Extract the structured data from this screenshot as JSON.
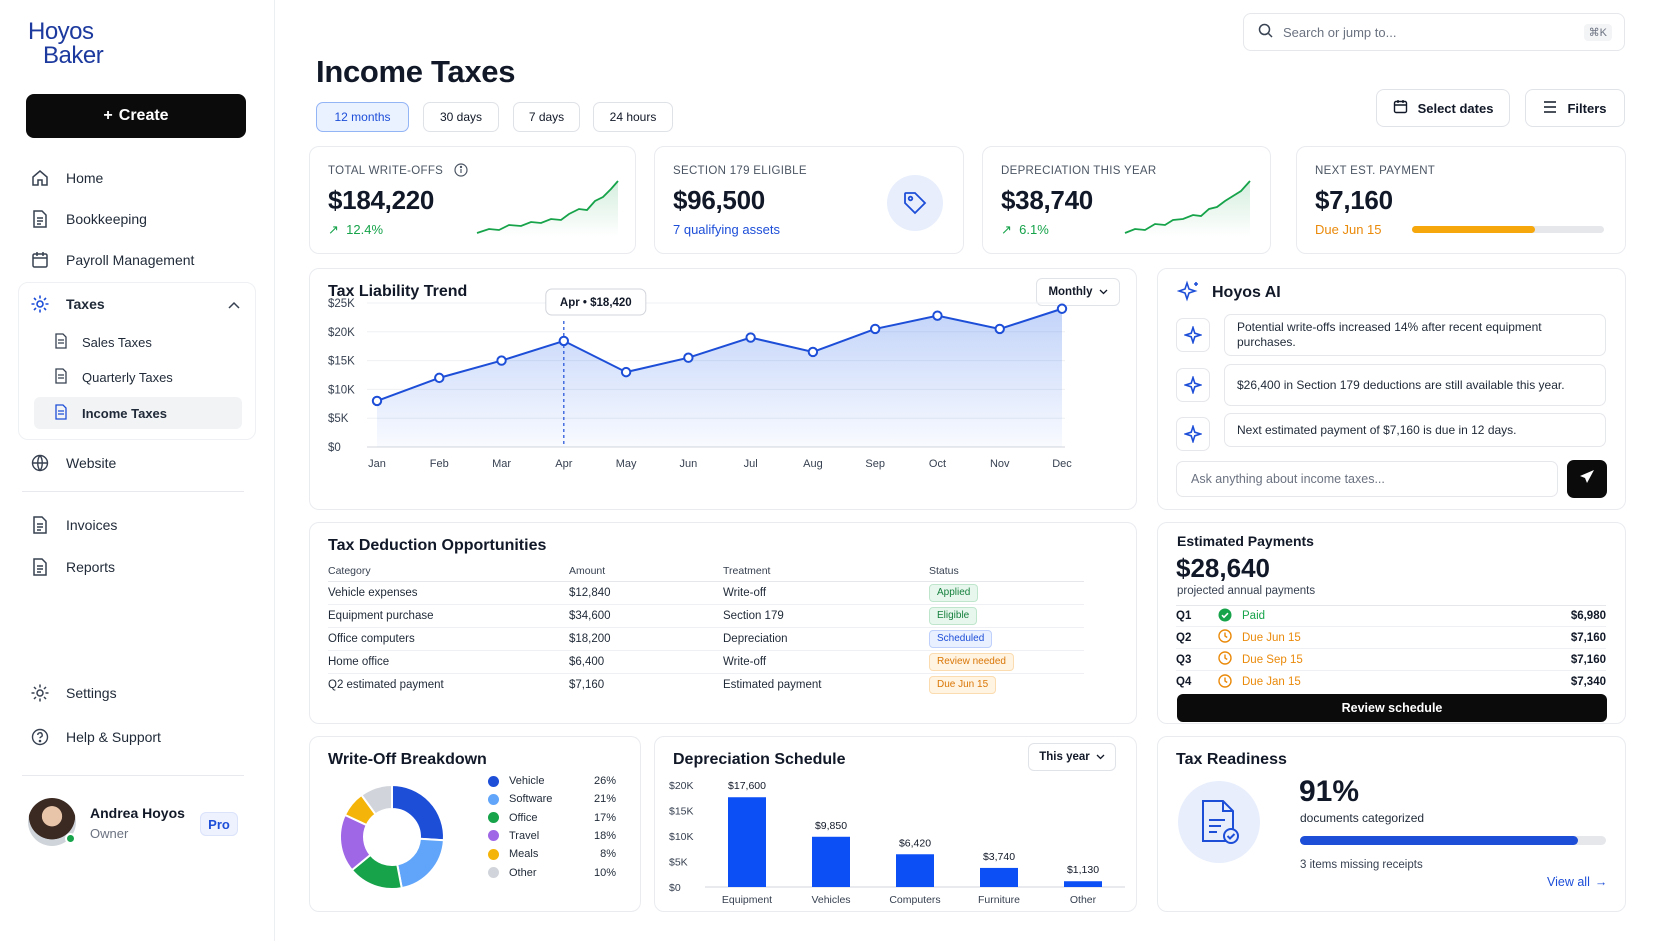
{
  "brand": {
    "line1": "Hoyos",
    "line2": "Baker",
    "color": "#1d3a9e"
  },
  "sidebar": {
    "create_label": "Create",
    "items": [
      {
        "label": "Home",
        "icon": "home-icon"
      },
      {
        "label": "Bookkeeping",
        "icon": "document-icon"
      },
      {
        "label": "Payroll Management",
        "icon": "calendar-icon"
      },
      {
        "label": "Taxes",
        "icon": "gear-icon"
      },
      {
        "label": "Website",
        "icon": "globe-icon"
      },
      {
        "label": "Invoices",
        "icon": "document-icon"
      },
      {
        "label": "Reports",
        "icon": "document-icon"
      },
      {
        "label": "Settings",
        "icon": "gear-icon"
      },
      {
        "label": "Help & Support",
        "icon": "help-icon"
      }
    ],
    "taxes_sub": [
      {
        "label": "Sales Taxes"
      },
      {
        "label": "Quarterly Taxes"
      },
      {
        "label": "Income Taxes",
        "active": true
      }
    ],
    "user": {
      "name": "Andrea Hoyos",
      "role": "Owner",
      "badge": "Pro",
      "status": "online"
    }
  },
  "header": {
    "search_placeholder": "Search or jump to...",
    "search_shortcut": "⌘K",
    "title": "Income Taxes",
    "ranges": [
      "12 months",
      "30 days",
      "7 days",
      "24 hours"
    ],
    "active_range": "12 months",
    "select_dates": "Select dates",
    "filters": "Filters"
  },
  "kpis": [
    {
      "label": "TOTAL WRITE-OFFS",
      "value": "$184,220",
      "sub": "12.4%",
      "trend": "up"
    },
    {
      "label": "SECTION 179 ELIGIBLE",
      "value": "$96,500",
      "sub": "7 qualifying assets"
    },
    {
      "label": "DEPRECIATION THIS YEAR",
      "value": "$38,740",
      "sub": "6.1%",
      "trend": "up"
    },
    {
      "label": "NEXT EST. PAYMENT",
      "value": "$7,160",
      "sub": "Due Jun 15",
      "progress": 0.64
    }
  ],
  "trend_chart": {
    "title": "Tax Liability Trend",
    "period_select": "Monthly",
    "tooltip": "Apr • $18,420"
  },
  "ai": {
    "title": "Hoyos AI",
    "messages": [
      "Potential write-offs increased 14% after recent equipment purchases.",
      "$26,400 in Section 179 deductions are still available this year.",
      "Next estimated payment of $7,160 is due in 12 days."
    ],
    "input_placeholder": "Ask anything about income taxes..."
  },
  "deductions": {
    "title": "Tax Deduction Opportunities",
    "columns": [
      "Category",
      "Amount",
      "Treatment",
      "Status"
    ],
    "rows": [
      {
        "category": "Vehicle expenses",
        "amount": "$12,840",
        "treatment": "Write-off",
        "status": "Applied",
        "tone": "green"
      },
      {
        "category": "Equipment purchase",
        "amount": "$34,600",
        "treatment": "Section 179",
        "status": "Eligible",
        "tone": "green"
      },
      {
        "category": "Office computers",
        "amount": "$18,200",
        "treatment": "Depreciation",
        "status": "Scheduled",
        "tone": "blue"
      },
      {
        "category": "Home office",
        "amount": "$6,400",
        "treatment": "Write-off",
        "status": "Review needed",
        "tone": "orange"
      },
      {
        "category": "Q2 estimated payment",
        "amount": "$7,160",
        "treatment": "Estimated payment",
        "status": "Due Jun 15",
        "tone": "orange"
      }
    ]
  },
  "estimated": {
    "title": "Estimated Payments",
    "total": "$28,640",
    "sub": "projected annual payments",
    "rows": [
      {
        "q": "Q1",
        "status": "Paid",
        "tone": "green",
        "amount": "$6,980"
      },
      {
        "q": "Q2",
        "status": "Due Jun 15",
        "tone": "orange",
        "amount": "$7,160"
      },
      {
        "q": "Q3",
        "status": "Due Sep 15",
        "tone": "orange",
        "amount": "$7,160"
      },
      {
        "q": "Q4",
        "status": "Due Jan 15",
        "tone": "orange",
        "amount": "$7,340"
      }
    ],
    "button": "Review schedule"
  },
  "writeoff": {
    "title": "Write-Off Breakdown"
  },
  "depreciation": {
    "title": "Depreciation Schedule",
    "period_select": "This year"
  },
  "readiness": {
    "title": "Tax Readiness",
    "value": "91%",
    "sub": "documents categorized",
    "progress": 0.91,
    "missing": "3 items missing receipts",
    "link": "View all"
  },
  "colors": {
    "accent": "#1d4ed8",
    "green": "#16a34a",
    "orange": "#f59e0b"
  },
  "chart_data": [
    {
      "type": "area",
      "title": "Tax Liability Trend",
      "x": [
        "Jan",
        "Feb",
        "Mar",
        "Apr",
        "May",
        "Jun",
        "Jul",
        "Aug",
        "Sep",
        "Oct",
        "Nov",
        "Dec"
      ],
      "series": [
        {
          "values": [
            8000,
            12000,
            15000,
            18420,
            13000,
            15500,
            19000,
            16500,
            20500,
            22800,
            20500,
            24000
          ]
        }
      ],
      "ylim": [
        0,
        25000
      ],
      "yticks": [
        "$0",
        "$5K",
        "$10K",
        "$15K",
        "$20K",
        "$25K"
      ],
      "grid": true
    },
    {
      "type": "pie",
      "title": "Write-Off Breakdown",
      "categories": [
        "Vehicle",
        "Software",
        "Office",
        "Travel",
        "Meals",
        "Other"
      ],
      "values": [
        26,
        21,
        17,
        18,
        8,
        10
      ],
      "labels": [
        "26%",
        "21%",
        "17%",
        "18%",
        "8%",
        "10%"
      ],
      "colors": [
        "#1d4ed8",
        "#60a5fa",
        "#16a34a",
        "#9f67e6",
        "#f5b40a",
        "#d1d5db"
      ],
      "legend": "right"
    },
    {
      "type": "bar",
      "title": "Depreciation Schedule",
      "categories": [
        "Equipment",
        "Vehicles",
        "Computers",
        "Furniture",
        "Other"
      ],
      "values": [
        17600,
        9850,
        6420,
        3740,
        1130
      ],
      "labels": [
        "$17,600",
        "$9,850",
        "$6,420",
        "$3,740",
        "$1,130"
      ],
      "ylim": [
        0,
        20000
      ],
      "yticks": [
        "$0",
        "$5K",
        "$10K",
        "$15K",
        "$20K"
      ]
    }
  ]
}
